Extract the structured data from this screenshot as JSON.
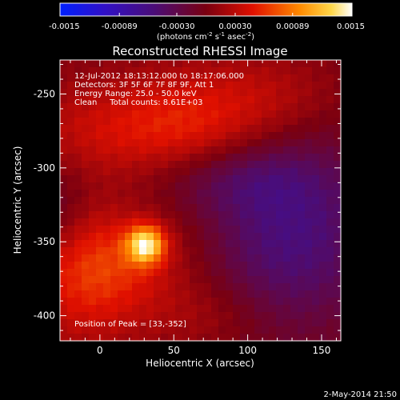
{
  "chart_data": {
    "type": "heatmap",
    "title": "Reconstructed RHESSI Image",
    "xlabel": "Heliocentric X (arcsec)",
    "ylabel": "Heliocentric Y (arcsec)",
    "xlim": [
      -27,
      163
    ],
    "ylim": [
      -417,
      -227
    ],
    "xticks": [
      0,
      50,
      100,
      150
    ],
    "yticks": [
      -250,
      -300,
      -350,
      -400
    ],
    "info_lines": [
      "12-Jul-2012 18:13:12.000 to 18:17:06.000",
      "Detectors: 3F 5F 6F 7F 8F 9F, Att 1",
      "Energy Range: 25.0 - 50.0 keV",
      "Clean     Total counts: 8.61E+03"
    ],
    "peak_label": "Position of Peak = [33,-352]",
    "peak": {
      "x": 33,
      "y": -352
    },
    "colorbar": {
      "range": [
        -0.0015,
        0.0015
      ],
      "ticks": [
        "-0.0015",
        "-0.00089",
        "-0.00030",
        "0.00030",
        "0.00089",
        "0.0015"
      ],
      "unit": {
        "base": "(photons cm",
        "e1": "-2",
        "m1": " s",
        "e2": "-1",
        "m2": " asec",
        "e3": "-2",
        "end": ")"
      }
    },
    "sources": [
      {
        "x": 31,
        "y": -352,
        "sx": 9,
        "sy": 9,
        "a": 0.00115
      },
      {
        "x": 10,
        "y": -360,
        "sx": 38,
        "sy": 24,
        "a": 0.00042
      },
      {
        "x": -10,
        "y": -385,
        "sx": 30,
        "sy": 30,
        "a": 0.00036
      },
      {
        "x": 20,
        "y": -275,
        "sx": 55,
        "sy": 25,
        "a": 0.0004
      },
      {
        "x": 70,
        "y": -270,
        "sx": 35,
        "sy": 30,
        "a": 0.0003
      },
      {
        "x": 120,
        "y": -250,
        "sx": 30,
        "sy": 20,
        "a": 0.0002
      },
      {
        "x": 70,
        "y": -400,
        "sx": 30,
        "sy": 18,
        "a": 0.0002
      },
      {
        "x": 130,
        "y": -345,
        "sx": 42,
        "sy": 45,
        "a": -0.00055
      },
      {
        "x": 85,
        "y": -305,
        "sx": 40,
        "sy": 18,
        "a": -0.00035
      },
      {
        "x": -25,
        "y": -330,
        "sx": 12,
        "sy": 25,
        "a": -0.0002
      }
    ],
    "grid": false,
    "legend": "none"
  },
  "footer_date": "2-May-2014 21:50"
}
